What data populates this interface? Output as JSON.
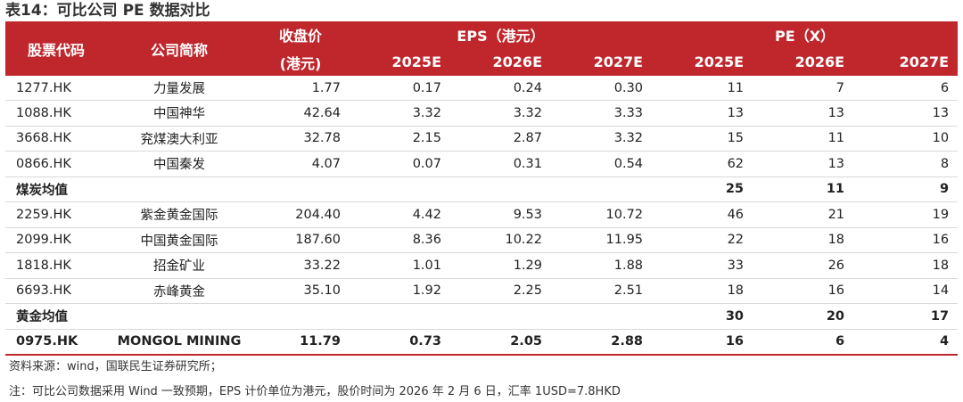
{
  "title": "表14：可比公司 PE 数据对比",
  "headers": {
    "code": "股票代码",
    "name": "公司简称",
    "close_top": "收盘价",
    "close_bottom": "(港元)",
    "eps_group": "EPS（港元）",
    "pe_group": "PE（X）",
    "years": [
      "2025E",
      "2026E",
      "2027E"
    ]
  },
  "rows": [
    {
      "type": "stock",
      "code": "1277.HK",
      "name": "力量发展",
      "close": "1.77",
      "eps": [
        "0.17",
        "0.24",
        "0.30"
      ],
      "pe": [
        "11",
        "7",
        "6"
      ]
    },
    {
      "type": "stock",
      "code": "1088.HK",
      "name": "中国神华",
      "close": "42.64",
      "eps": [
        "3.32",
        "3.32",
        "3.33"
      ],
      "pe": [
        "13",
        "13",
        "13"
      ]
    },
    {
      "type": "stock",
      "code": "3668.HK",
      "name": "兖煤澳大利亚",
      "close": "32.78",
      "eps": [
        "2.15",
        "2.87",
        "3.32"
      ],
      "pe": [
        "15",
        "11",
        "10"
      ]
    },
    {
      "type": "stock",
      "code": "0866.HK",
      "name": "中国秦发",
      "close": "4.07",
      "eps": [
        "0.07",
        "0.31",
        "0.54"
      ],
      "pe": [
        "62",
        "13",
        "8"
      ]
    },
    {
      "type": "avg",
      "code": "煤炭均值",
      "name": "",
      "close": "",
      "eps": [
        "",
        "",
        ""
      ],
      "pe": [
        "25",
        "11",
        "9"
      ]
    },
    {
      "type": "stock",
      "code": "2259.HK",
      "name": "紫金黄金国际",
      "close": "204.40",
      "eps": [
        "4.42",
        "9.53",
        "10.72"
      ],
      "pe": [
        "46",
        "21",
        "19"
      ]
    },
    {
      "type": "stock",
      "code": "2099.HK",
      "name": "中国黄金国际",
      "close": "187.60",
      "eps": [
        "8.36",
        "10.22",
        "11.95"
      ],
      "pe": [
        "22",
        "18",
        "16"
      ]
    },
    {
      "type": "stock",
      "code": "1818.HK",
      "name": "招金矿业",
      "close": "33.22",
      "eps": [
        "1.01",
        "1.29",
        "1.88"
      ],
      "pe": [
        "33",
        "26",
        "18"
      ]
    },
    {
      "type": "stock",
      "code": "6693.HK",
      "name": "赤峰黄金",
      "close": "35.10",
      "eps": [
        "1.92",
        "2.25",
        "2.51"
      ],
      "pe": [
        "18",
        "16",
        "14"
      ]
    },
    {
      "type": "avg",
      "code": "黄金均值",
      "name": "",
      "close": "",
      "eps": [
        "",
        "",
        ""
      ],
      "pe": [
        "30",
        "20",
        "17"
      ]
    },
    {
      "type": "hl",
      "code": "0975.HK",
      "name": "MONGOL MINING",
      "close": "11.79",
      "eps": [
        "0.73",
        "2.05",
        "2.88"
      ],
      "pe": [
        "16",
        "6",
        "4"
      ]
    }
  ],
  "source": "资料来源：wind，国联民生证券研究所；",
  "note": "注：可比公司数据采用 Wind 一致预期，EPS 计价单位为港元，股价时间为 2026 年 2 月 6 日，汇率 1USD=7.8HKD",
  "colors": {
    "header_bg": "#c0272d",
    "header_text": "#ffffff",
    "row_border": "#d9d9d9"
  }
}
